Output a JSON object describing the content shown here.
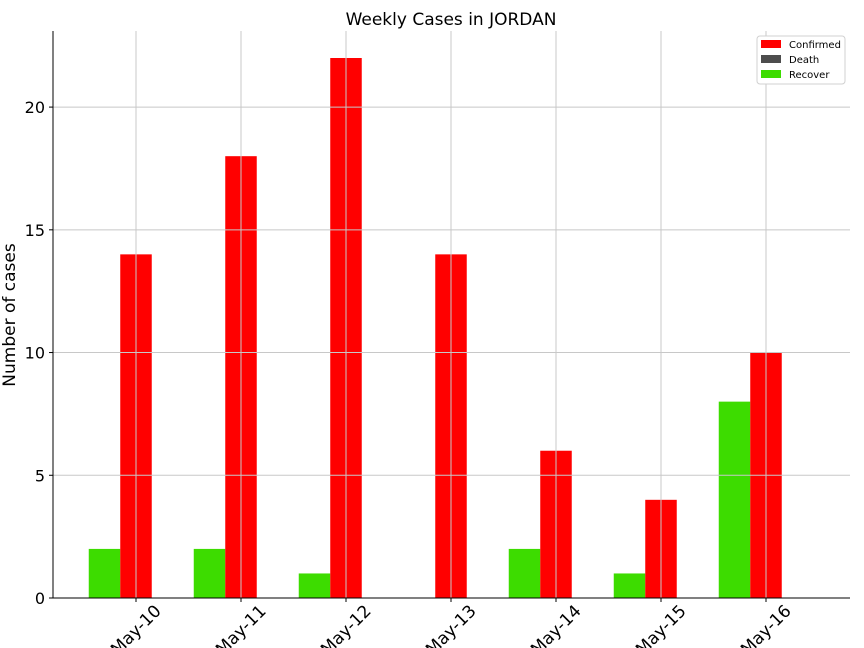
{
  "chart_data": {
    "type": "bar",
    "title": "Weekly Cases in JORDAN",
    "xlabel": "",
    "ylabel": "Number of cases",
    "categories": [
      "May-10",
      "May-11",
      "May-12",
      "May-13",
      "May-14",
      "May-15",
      "May-16"
    ],
    "ylim": [
      0,
      23.1
    ],
    "yticks": [
      0,
      5,
      10,
      15,
      20
    ],
    "grid": true,
    "legend_position": "top-right",
    "series": [
      {
        "name": "Confirmed",
        "color": "#ff0000",
        "values": [
          14,
          18,
          22,
          14,
          6,
          4,
          10
        ]
      },
      {
        "name": "Death",
        "color": "#4d4d4d",
        "values": [
          0,
          0,
          0,
          0,
          0,
          0,
          0
        ]
      },
      {
        "name": "Recover",
        "color": "#3ddc00",
        "values": [
          2,
          2,
          1,
          0,
          2,
          1,
          8
        ]
      }
    ]
  }
}
